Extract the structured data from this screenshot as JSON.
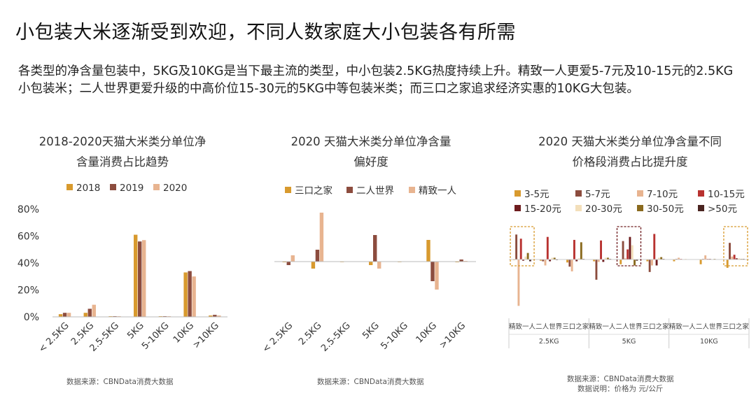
{
  "page": {
    "title": "小包装大米逐渐受到欢迎，不同人数家庭大小包装各有所需",
    "summary": "各类型的净含量包装中，5KG及10KG是当下最主流的类型，中小包装2.5KG热度持续上升。精致一人更爱5-7元及10-15元的2.5KG小包装米；二人世界更爱升级的中高价位15-30元的5KG中等包装米类；而三口之家追求经济实惠的10KG大包装。"
  },
  "colors": {
    "c2018": "#d89a2e",
    "c2019": "#8c4c3e",
    "c2020": "#e8b490",
    "sankou": "#d89a2e",
    "erren": "#8c4c3e",
    "jingzhi": "#e8b490",
    "p3_5": "#d89a2e",
    "p5_7": "#8c4c3e",
    "p7_10": "#e8b490",
    "p10_15": "#b83230",
    "p15_20": "#6e1c1e",
    "p20_30": "#f3dfba",
    "p30_50": "#8a6a1e",
    "p50": "#4a2420",
    "highlight": "#d89a2e"
  },
  "chart_data": [
    {
      "type": "bar",
      "title_line1": "2018-2020天猫大米类分单位净",
      "title_line2": "含量消费占比趋势",
      "categories": [
        "< 2.5KG",
        "2.5KG",
        "2.5-5KG",
        "5KG",
        "5-10KG",
        "10KG",
        ">10KG"
      ],
      "series": [
        {
          "name": "2018",
          "values": [
            2,
            3,
            0.5,
            61,
            0.5,
            33,
            1
          ]
        },
        {
          "name": "2019",
          "values": [
            3,
            6,
            0.5,
            56,
            0.5,
            34,
            1.5
          ]
        },
        {
          "name": "2020",
          "values": [
            3,
            9,
            0.5,
            57,
            0.5,
            30,
            1
          ]
        }
      ],
      "yticks": [
        "80%",
        "60%",
        "40%",
        "20%",
        "0%"
      ],
      "ylim": [
        0,
        80
      ],
      "source": "数据来源：CBNData消费大数据"
    },
    {
      "type": "bar",
      "title_line1": "2020 天猫大米类分单位净含量",
      "title_line2": "偏好度",
      "categories": [
        "< 2.5KG",
        "2.5KG",
        "2.5-5KG",
        "5KG",
        "5-10KG",
        "10KG",
        ">10KG"
      ],
      "series": [
        {
          "name": "三口之家",
          "values": [
            -1,
            -10,
            -0.5,
            -5,
            -0.5,
            31,
            -1
          ]
        },
        {
          "name": "二人世界",
          "values": [
            -5,
            17,
            0.5,
            38,
            0.5,
            -28,
            3
          ]
        },
        {
          "name": "精致一人",
          "values": [
            9,
            70,
            0.5,
            -10,
            0.5,
            -40,
            1
          ]
        }
      ],
      "source": "数据来源：CBNData消费大数据"
    },
    {
      "type": "bar",
      "title_line1": "2020 天猫大米类分单位净含量不同",
      "title_line2": "价格段消费占比提升度",
      "legend": [
        "3-5元",
        "5-7元",
        "7-10元",
        "10-15元",
        "15-20元",
        "20-30元",
        "30-50元",
        ">50元"
      ],
      "categories": [
        "精致一人",
        "二人世界",
        "三口之家",
        "精致一人",
        "二人世界",
        "三口之家",
        "精致一人",
        "二人世界",
        "三口之家"
      ],
      "groups": [
        "2.5KG",
        "5KG",
        "10KG"
      ],
      "series": [
        {
          "name": "3-5元",
          "values": [
            -1,
            -2,
            -5,
            -3,
            -8,
            -3,
            -3,
            -8,
            -14
          ]
        },
        {
          "name": "5-7元",
          "values": [
            42,
            -3,
            -12,
            -34,
            31,
            -21,
            1,
            1,
            28
          ]
        },
        {
          "name": "7-10元",
          "values": [
            -78,
            -10,
            -20,
            -4,
            2,
            -10,
            3,
            7,
            5
          ]
        },
        {
          "name": "10-15元",
          "values": [
            35,
            38,
            33,
            32,
            17,
            43,
            1,
            1,
            8
          ]
        },
        {
          "name": "15-20元",
          "values": [
            -2,
            -3,
            -3,
            -4,
            38,
            -10,
            0.5,
            1,
            2
          ]
        },
        {
          "name": "20-30元",
          "values": [
            5,
            3,
            2,
            3,
            24,
            3,
            1,
            0.5,
            2
          ]
        },
        {
          "name": "30-50元",
          "values": [
            11,
            3,
            29,
            3,
            -10,
            4,
            0.5,
            1,
            1
          ]
        },
        {
          "name": ">50元",
          "values": [
            -3,
            -1,
            1,
            1,
            -2,
            1,
            0.5,
            0.5,
            1
          ]
        }
      ],
      "source_line1": "数据来源：CBNData消费大数据",
      "source_line2": "数据说明：价格为 元/公斤"
    }
  ]
}
